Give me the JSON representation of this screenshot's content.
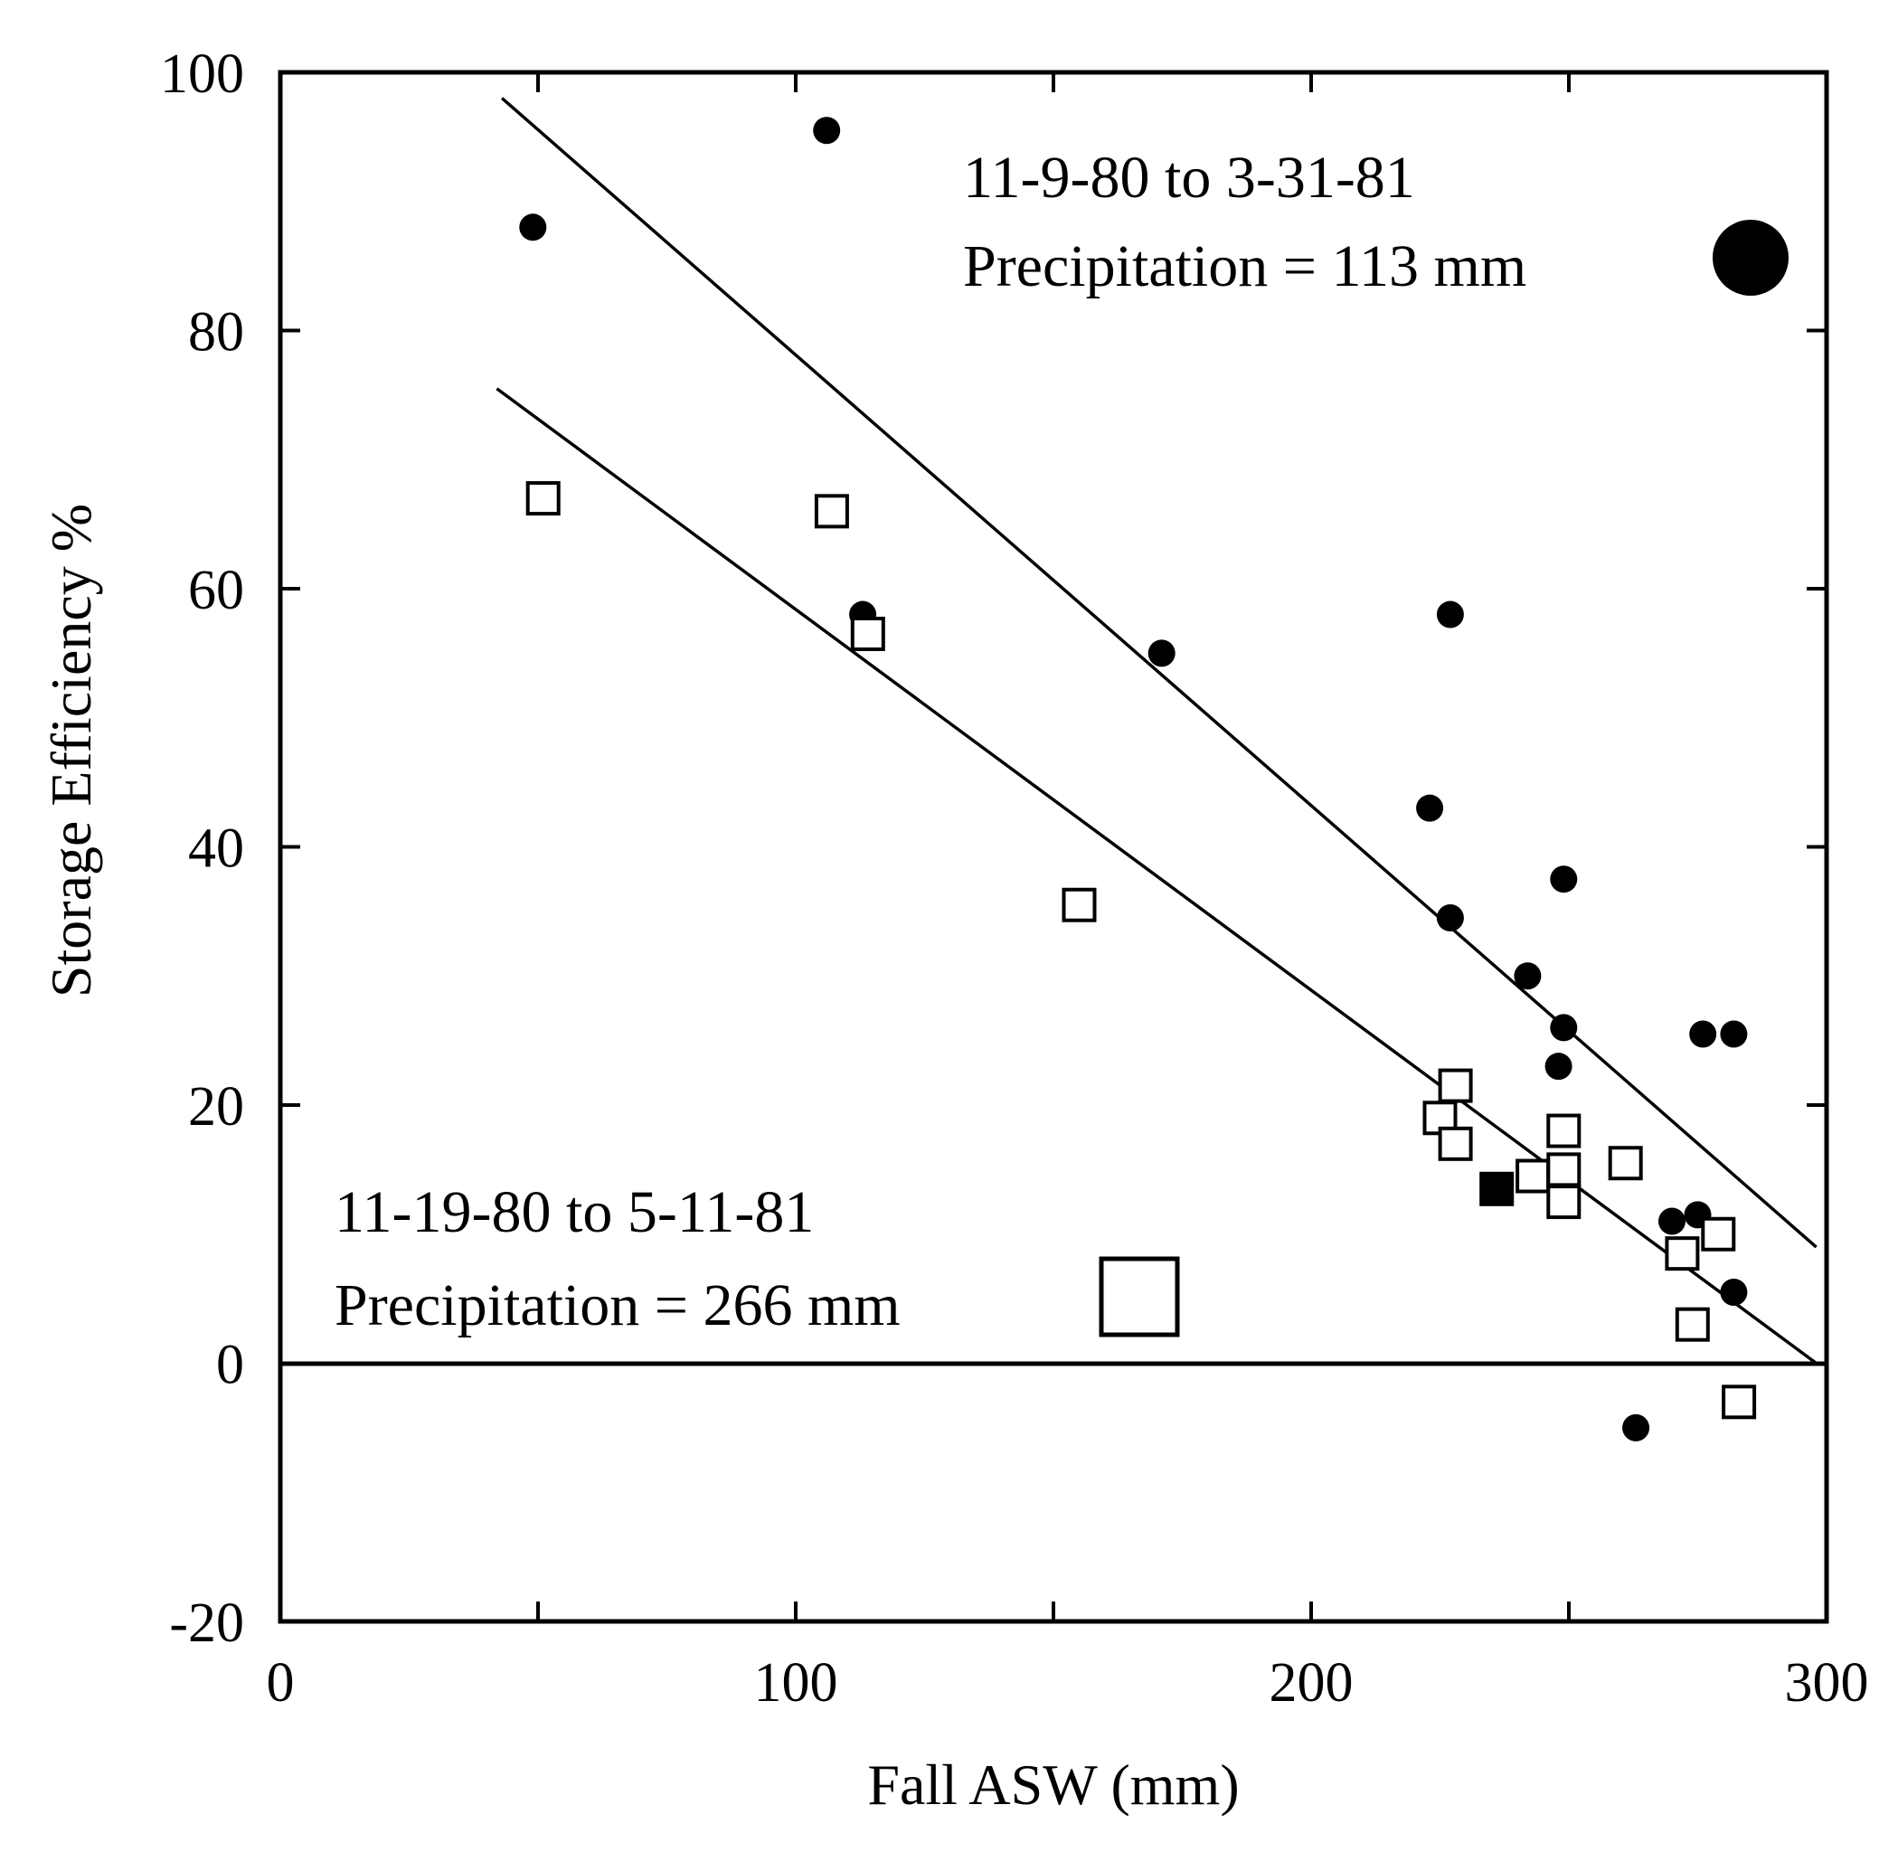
{
  "chart_data": {
    "type": "scatter",
    "xlabel": "Fall ASW   (mm)",
    "ylabel": "Storage Efficiency   %",
    "xlim": [
      0,
      300
    ],
    "ylim": [
      -20,
      100
    ],
    "x_ticks": [
      "0",
      "100",
      "200",
      "300"
    ],
    "y_ticks": [
      "100",
      "80",
      "60",
      "40",
      "20",
      "0",
      "-20"
    ],
    "grid": false,
    "zero_line": true,
    "series": [
      {
        "legend_line1": "11-9-80 to 3-31-81",
        "legend_line2": "Precipitation = 113 mm",
        "marker": "filled-circle",
        "color": "#000000",
        "points": [
          [
            49,
            88
          ],
          [
            106,
            95.5
          ],
          [
            113,
            58
          ],
          [
            171,
            55
          ],
          [
            223,
            43
          ],
          [
            227,
            58
          ],
          [
            227,
            34.5
          ],
          [
            242,
            30
          ],
          [
            248,
            23
          ],
          [
            249,
            26
          ],
          [
            249,
            37.5
          ],
          [
            263,
            -5
          ],
          [
            270,
            11
          ],
          [
            275,
            11.5
          ],
          [
            276,
            25.5
          ],
          [
            282,
            25.5
          ],
          [
            282,
            5.5
          ]
        ],
        "fit_line": [
          [
            43,
            98
          ],
          [
            298,
            9
          ]
        ]
      },
      {
        "legend_line1": "11-19-80 to 5-11-81",
        "legend_line2": "Precipitation = 266 mm",
        "marker": "open-square",
        "color": "#000000",
        "points": [
          [
            51,
            67
          ],
          [
            107,
            66
          ],
          [
            114,
            56.5
          ],
          [
            155,
            35.5
          ],
          [
            225,
            19
          ],
          [
            228,
            21.5
          ],
          [
            228,
            17
          ],
          [
            243,
            14.5
          ],
          [
            249,
            18
          ],
          [
            249,
            15
          ],
          [
            249,
            12.5
          ],
          [
            261,
            15.5
          ],
          [
            272,
            8.5
          ],
          [
            274,
            3
          ],
          [
            279,
            10
          ],
          [
            283,
            -3
          ]
        ],
        "filled_square": [
          [
            236,
            13.5
          ]
        ],
        "fit_line": [
          [
            42,
            75.5
          ],
          [
            298,
            0
          ]
        ]
      }
    ]
  }
}
